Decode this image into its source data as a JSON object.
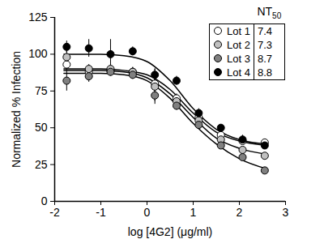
{
  "chart_data": {
    "type": "scatter",
    "x_label": "log [4G2] (μg/ml)",
    "y_label": "Normalized % Infection",
    "xlim": [
      -2,
      3
    ],
    "xticks": [
      -2,
      -1,
      0,
      1,
      2,
      3
    ],
    "ylim": [
      0,
      125
    ],
    "yticks": [
      0,
      25,
      50,
      75,
      100,
      125
    ],
    "legend": "top-right",
    "legend_title": "NT50",
    "x": [
      -1.74,
      -1.26,
      -0.79,
      -0.31,
      0.17,
      0.64,
      1.12,
      1.6,
      2.07,
      2.55
    ],
    "series": [
      {
        "name": "Lot 1",
        "color": "#ffffff",
        "marker": "circle",
        "nt50": 7.4,
        "values": [
          93,
          88,
          89,
          88,
          80,
          70,
          57,
          45,
          41,
          40
        ],
        "errors": [
          4,
          4,
          3,
          3,
          5,
          3,
          3,
          2,
          2,
          2
        ],
        "fit": {
          "x": [
            -1.8,
            -1,
            -0.5,
            0,
            0.5,
            1,
            1.5,
            2,
            2.6
          ],
          "values": [
            90,
            90,
            89,
            86,
            76,
            60,
            47,
            41,
            38
          ]
        }
      },
      {
        "name": "Lot 2",
        "color": "#c0c0c0",
        "marker": "circle",
        "nt50": 7.3,
        "values": [
          98,
          90,
          90,
          88,
          78,
          68,
          55,
          42,
          35,
          31
        ],
        "errors": [
          4,
          3,
          3,
          3,
          12,
          3,
          3,
          2,
          2,
          2
        ],
        "fit": {
          "x": [
            -1.8,
            -1,
            -0.5,
            0,
            0.5,
            1,
            1.5,
            2,
            2.6
          ],
          "values": [
            89,
            89,
            88,
            84,
            73,
            57,
            43,
            36,
            32
          ]
        }
      },
      {
        "name": "Lot 3",
        "color": "#808080",
        "marker": "circle",
        "nt50": 8.7,
        "values": [
          82,
          85,
          88,
          86,
          72,
          65,
          52,
          38,
          30,
          21
        ],
        "errors": [
          7,
          4,
          3,
          3,
          4,
          3,
          3,
          2,
          2,
          2
        ],
        "fit": {
          "x": [
            -1.8,
            -1,
            -0.5,
            0,
            0.5,
            1,
            1.5,
            2,
            2.6
          ],
          "values": [
            87,
            87,
            86,
            82,
            70,
            53,
            39,
            29,
            22
          ]
        }
      },
      {
        "name": "Lot 4",
        "color": "#000000",
        "marker": "circle",
        "nt50": 8.8,
        "values": [
          105,
          104,
          100,
          102,
          86,
          82,
          60,
          50,
          42,
          38
        ],
        "errors": [
          4,
          6,
          10,
          3,
          4,
          3,
          3,
          2,
          3,
          2
        ],
        "fit": {
          "x": [
            -1.8,
            -1,
            -0.5,
            0,
            0.5,
            1,
            1.5,
            2,
            2.6
          ],
          "values": [
            100,
            100,
            99,
            95,
            82,
            63,
            49,
            42,
            39
          ]
        }
      }
    ]
  }
}
